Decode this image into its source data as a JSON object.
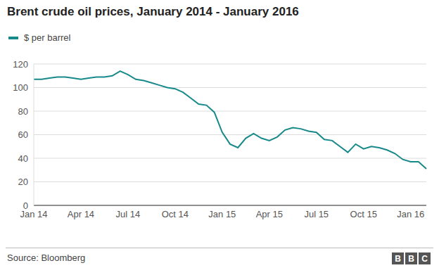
{
  "chart_data": {
    "type": "line",
    "title": "Brent crude oil prices, January 2014 - January 2016",
    "source": "Source: Bloomberg",
    "logo": "BBC",
    "categories": [
      "Jan 14",
      null,
      null,
      null,
      null,
      null,
      "Apr 14",
      null,
      null,
      null,
      null,
      null,
      "Jul 14",
      null,
      null,
      null,
      null,
      null,
      "Oct 14",
      null,
      null,
      null,
      null,
      null,
      "Jan 15",
      null,
      null,
      null,
      null,
      null,
      "Apr 15",
      null,
      null,
      null,
      null,
      null,
      "Jul 15",
      null,
      null,
      null,
      null,
      null,
      "Oct 15",
      null,
      null,
      null,
      null,
      null,
      "Jan 16",
      null,
      null
    ],
    "series": [
      {
        "name": "$ per barrel",
        "color": "#17898a",
        "values": [
          107,
          107,
          108,
          109,
          109,
          108,
          107,
          108,
          109,
          109,
          110,
          114,
          111,
          107,
          106,
          104,
          102,
          100,
          99,
          96,
          91,
          86,
          85,
          79,
          62,
          52,
          49,
          57,
          61,
          57,
          55,
          58,
          64,
          66,
          65,
          63,
          62,
          56,
          55,
          50,
          45,
          52,
          48,
          50,
          49,
          47,
          44,
          39,
          37,
          37,
          31
        ]
      }
    ],
    "ylim": [
      0,
      120
    ],
    "yticks": [
      0,
      20,
      40,
      60,
      80,
      100,
      120
    ],
    "grid": true,
    "legend": "top-left"
  }
}
